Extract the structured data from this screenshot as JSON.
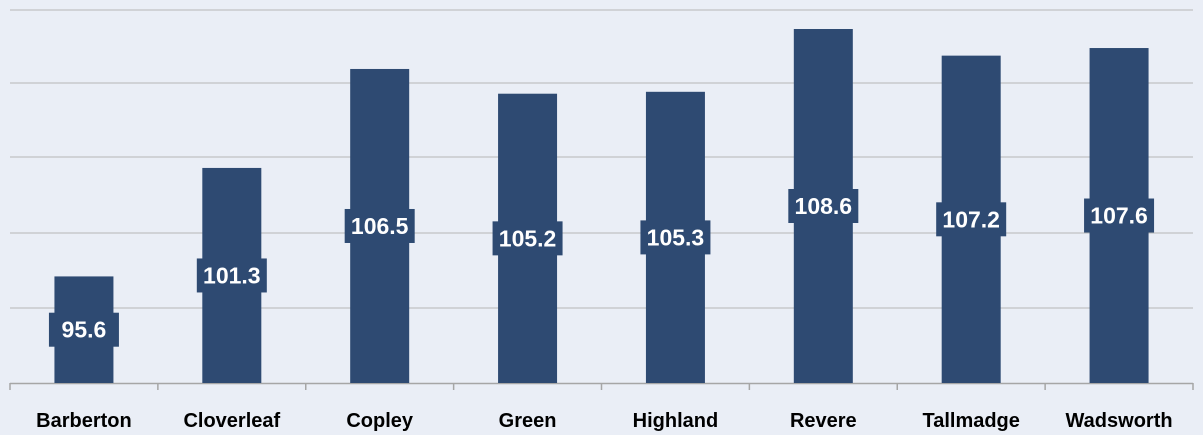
{
  "chart_data": {
    "type": "bar",
    "categories": [
      "Barberton",
      "Cloverleaf",
      "Copley",
      "Green",
      "Highland",
      "Revere",
      "Tallmadge",
      "Wadsworth"
    ],
    "values": [
      95.6,
      101.3,
      106.5,
      105.2,
      105.3,
      108.6,
      107.2,
      107.6
    ],
    "title": "",
    "xlabel": "",
    "ylabel": "",
    "ylim": [
      90,
      109.5
    ],
    "grid": true,
    "legend": "none",
    "data_labels": true
  },
  "colors": {
    "bar": "#2e4a72",
    "plot_background": "#eaeef6",
    "gridline": "#b5b5b5",
    "axis": "#a6a6a6",
    "label_text": "#ffffff",
    "category_text": "#000000"
  }
}
